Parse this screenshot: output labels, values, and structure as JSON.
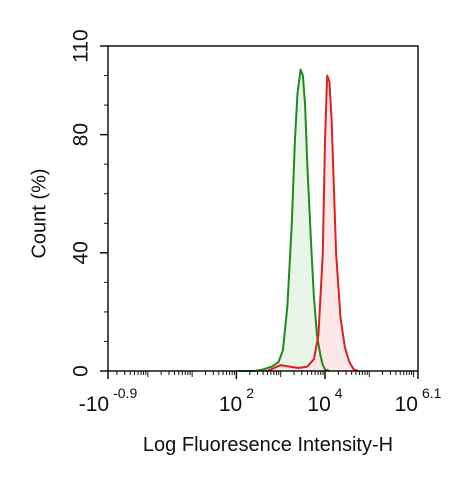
{
  "chart_data": {
    "type": "area",
    "title": "",
    "xlabel": "Log Fluoresence Intensity-H",
    "ylabel": "Count  (%)",
    "x_scale": "log",
    "xlim_log10": [
      -0.9,
      6.1
    ],
    "ylim": [
      0,
      110
    ],
    "grid": false,
    "legend": "none",
    "y_ticks": [
      {
        "value": 0,
        "label": "0"
      },
      {
        "value": 40,
        "label": "40"
      },
      {
        "value": 80,
        "label": "80"
      },
      {
        "value": 110,
        "label": "110"
      }
    ],
    "x_ticks": [
      {
        "log10": -0.9,
        "base": "-10",
        "exp": "-0.9"
      },
      {
        "log10": 2,
        "base": "10",
        "exp": "2"
      },
      {
        "log10": 4,
        "base": "10",
        "exp": "4"
      },
      {
        "log10": 6.1,
        "base": "10",
        "exp": "6.1"
      }
    ],
    "series": [
      {
        "color": "#1f8a1f",
        "fill": "#e3f2e3",
        "x_log10": [
          2.05,
          2.4,
          2.6,
          2.8,
          2.95,
          3.05,
          3.15,
          3.25,
          3.32,
          3.38,
          3.45,
          3.5,
          3.55,
          3.6,
          3.68,
          3.75,
          3.82,
          3.9,
          3.95,
          4.0,
          4.1
        ],
        "y": [
          0,
          0,
          0.5,
          1.5,
          3,
          7,
          22,
          50,
          78,
          94,
          102,
          100,
          90,
          70,
          45,
          25,
          12,
          5,
          2,
          0.5,
          0
        ]
      },
      {
        "color": "#dd2020",
        "fill": "#fbe0e0",
        "x_log10": [
          2.7,
          2.85,
          3.0,
          3.2,
          3.4,
          3.6,
          3.75,
          3.85,
          3.95,
          4.0,
          4.05,
          4.1,
          4.15,
          4.2,
          4.25,
          4.35,
          4.45,
          4.55,
          4.65,
          4.75
        ],
        "y": [
          0,
          1,
          2,
          1.5,
          1,
          1.5,
          4,
          12,
          40,
          78,
          100,
          98,
          85,
          62,
          40,
          18,
          8,
          3,
          0.5,
          0
        ]
      }
    ]
  }
}
